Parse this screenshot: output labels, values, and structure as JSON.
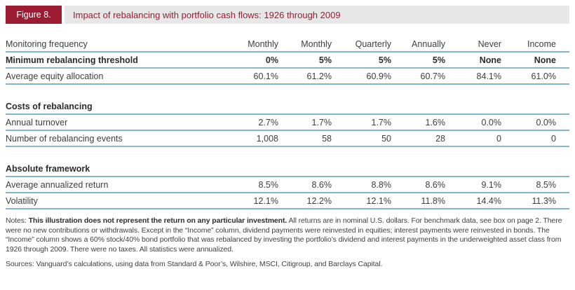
{
  "figure_header": {
    "label": "Figure 8.",
    "title": "Impact of rebalancing with portfolio cash flows: 1926 through 2009"
  },
  "colors": {
    "accent_maroon": "#9c1b33",
    "band_gray": "#e7e7e7",
    "rule_blue": "#86b4cd",
    "text_dark": "#3d3d3d"
  },
  "table": {
    "monitoring_row": {
      "label": "Monitoring frequency",
      "values": [
        "Monthly",
        "Monthly",
        "Quarterly",
        "Annually",
        "Never",
        "Income"
      ]
    },
    "threshold_row": {
      "label": "Minimum rebalancing threshold",
      "values": [
        "0%",
        "5%",
        "5%",
        "5%",
        "None",
        "None"
      ]
    },
    "equity_row": {
      "label": "Average equity allocation",
      "values": [
        "60.1%",
        "61.2%",
        "60.9%",
        "60.7%",
        "84.1%",
        "61.0%"
      ]
    },
    "costs_section": {
      "title": "Costs of rebalancing",
      "turnover_row": {
        "label": "Annual turnover",
        "values": [
          "2.7%",
          "1.7%",
          "1.7%",
          "1.6%",
          "0.0%",
          "0.0%"
        ]
      },
      "events_row": {
        "label": "Number of rebalancing events",
        "values": [
          "1,008",
          "58",
          "50",
          "28",
          "0",
          "0"
        ]
      }
    },
    "absolute_section": {
      "title": "Absolute framework",
      "return_row": {
        "label": "Average annualized return",
        "values": [
          "8.5%",
          "8.6%",
          "8.8%",
          "8.6%",
          "9.1%",
          "8.5%"
        ]
      },
      "volatility_row": {
        "label": "Volatility",
        "values": [
          "12.1%",
          "12.2%",
          "12.1%",
          "11.8%",
          "14.4%",
          "11.3%"
        ]
      }
    }
  },
  "notes": {
    "prefix": "Notes: ",
    "bold": "This illustration does not represent the return on any particular investment.",
    "rest": " All returns are in nominal U.S. dollars. For benchmark data, see box on page 2. There were no new contributions or withdrawals. Except in the “Income” column, dividend payments were reinvested in equities; interest payments were reinvested in bonds. The “Income” column shows a 60% stock/40% bond portfolio that was rebalanced by investing the portfolio’s dividend and interest payments in the underweighted asset class from 1926 through 2009. There were no taxes. All statistics were annualized."
  },
  "sources": "Sources: Vanguard’s calculations, using data from Standard & Poor’s, Wilshire, MSCI, Citigroup, and Barclays Capital.",
  "chart_data": {
    "type": "table",
    "title": "Impact of rebalancing with portfolio cash flows: 1926 through 2009",
    "columns": [
      "Monitoring frequency",
      "Monthly",
      "Monthly",
      "Quarterly",
      "Annually",
      "Never",
      "Income"
    ],
    "rows": [
      [
        "Minimum rebalancing threshold",
        "0%",
        "5%",
        "5%",
        "5%",
        "None",
        "None"
      ],
      [
        "Average equity allocation",
        "60.1%",
        "61.2%",
        "60.9%",
        "60.7%",
        "84.1%",
        "61.0%"
      ],
      [
        "Annual turnover",
        "2.7%",
        "1.7%",
        "1.7%",
        "1.6%",
        "0.0%",
        "0.0%"
      ],
      [
        "Number of rebalancing events",
        "1,008",
        "58",
        "50",
        "28",
        "0",
        "0"
      ],
      [
        "Average annualized return",
        "8.5%",
        "8.6%",
        "8.8%",
        "8.6%",
        "9.1%",
        "8.5%"
      ],
      [
        "Volatility",
        "12.1%",
        "12.2%",
        "12.1%",
        "11.8%",
        "14.4%",
        "11.3%"
      ]
    ],
    "sections": [
      "Costs of rebalancing",
      "Absolute framework"
    ]
  }
}
